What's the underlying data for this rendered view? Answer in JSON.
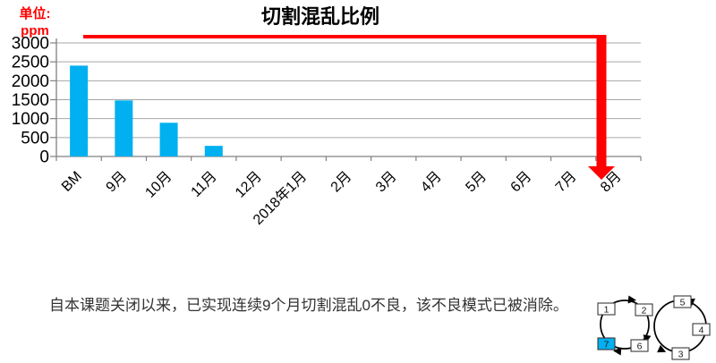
{
  "chart": {
    "title": "切割混乱比例",
    "unit_label": {
      "line1": "单位:",
      "line2": "ppm",
      "color": "#ff0000"
    }
  },
  "chart_data": {
    "type": "bar",
    "title": "切割混乱比例",
    "ylabel": "单位: ppm",
    "xlabel": "",
    "categories": [
      "BM",
      "9月",
      "10月",
      "11月",
      "12月",
      "2018年1月",
      "2月",
      "3月",
      "4月",
      "5月",
      "6月",
      "7月",
      "8月"
    ],
    "values": [
      2400,
      1480,
      890,
      280,
      0,
      0,
      0,
      0,
      0,
      0,
      0,
      0,
      0
    ],
    "ylim": [
      0,
      3000
    ],
    "ytick_step": 500,
    "grid": true,
    "legend": false,
    "bar_color": "#00b0f0",
    "grid_color": "#a6a6a6",
    "axis_color": "#808080",
    "annotation": {
      "shape": "elbow-arrow",
      "color": "#ff0000",
      "description": "horizontal red line across chart top turning into thick downward arrow at 8月"
    }
  },
  "caption": {
    "text": "自本课题关闭以来，已实现连续9个月切割混乱0不良，该不良模式已被消除。"
  },
  "diagram": {
    "steps": [
      {
        "label": "1"
      },
      {
        "label": "2"
      },
      {
        "label": "3"
      },
      {
        "label": "4"
      },
      {
        "label": "5"
      },
      {
        "label": "6"
      },
      {
        "label": "7"
      }
    ],
    "highlighted_step": "7",
    "highlight_color": "#00b0f0",
    "box_fill": "#ffffff",
    "line_color": "#000000"
  }
}
